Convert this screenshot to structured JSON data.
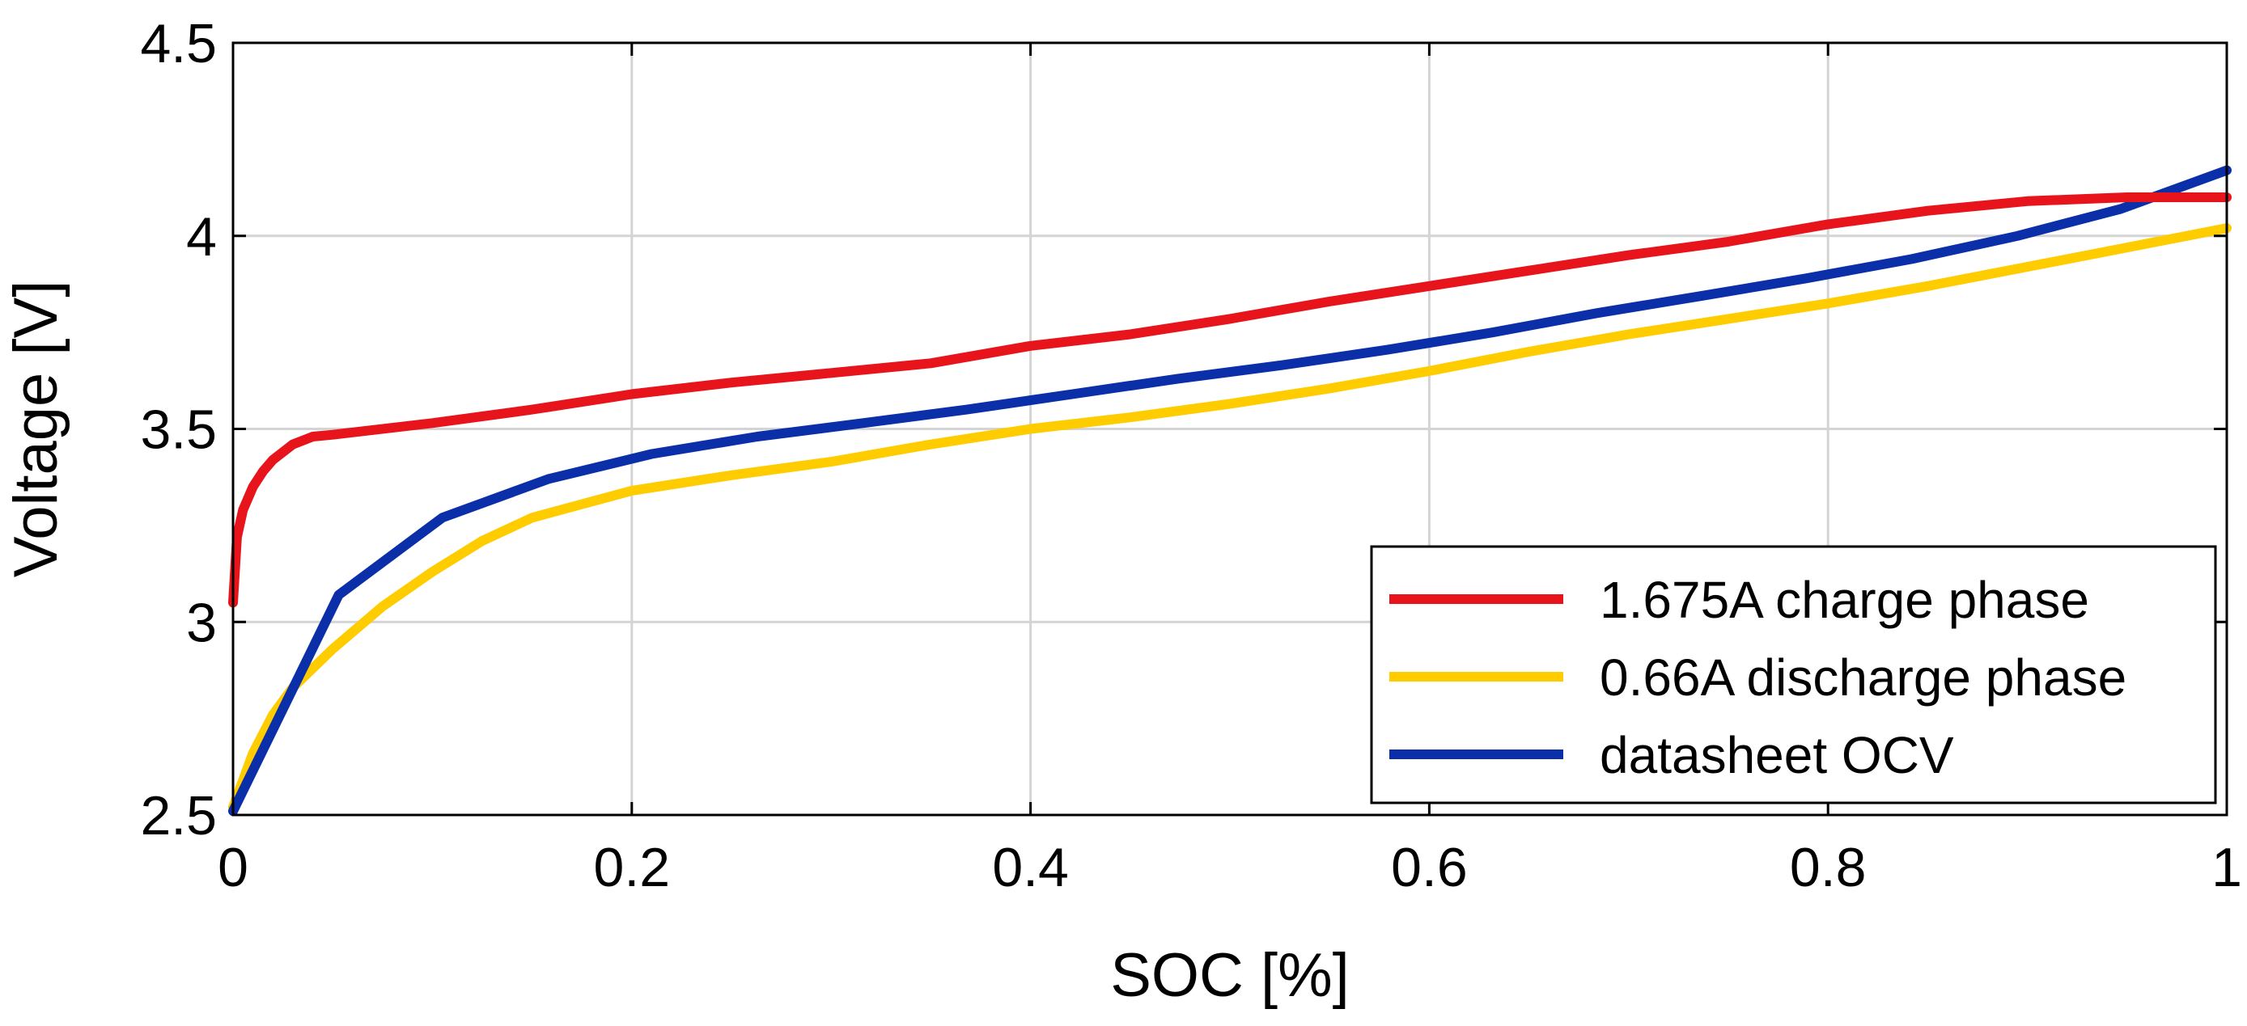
{
  "chart_data": {
    "type": "line",
    "title": "",
    "xlabel": "SOC [%]",
    "ylabel": "Voltage [V]",
    "xlim": [
      0,
      1
    ],
    "ylim": [
      2.5,
      4.5
    ],
    "grid": true,
    "legend_position": "bottom-right",
    "xticks": [
      {
        "value": 0,
        "label": "0"
      },
      {
        "value": 0.2,
        "label": "0.2"
      },
      {
        "value": 0.4,
        "label": "0.4"
      },
      {
        "value": 0.6,
        "label": "0.6"
      },
      {
        "value": 0.8,
        "label": "0.8"
      },
      {
        "value": 1,
        "label": "1"
      }
    ],
    "yticks": [
      {
        "value": 2.5,
        "label": "2.5"
      },
      {
        "value": 3,
        "label": "3"
      },
      {
        "value": 3.5,
        "label": "3.5"
      },
      {
        "value": 4,
        "label": "4"
      },
      {
        "value": 4.5,
        "label": "4.5"
      }
    ],
    "series": [
      {
        "name": "1.675A charge phase",
        "color": "#e8141c",
        "x": [
          0,
          0.002,
          0.005,
          0.01,
          0.015,
          0.02,
          0.03,
          0.04,
          0.05,
          0.1,
          0.15,
          0.2,
          0.25,
          0.3,
          0.35,
          0.4,
          0.45,
          0.5,
          0.55,
          0.6,
          0.65,
          0.7,
          0.75,
          0.8,
          0.85,
          0.9,
          0.95,
          1.0
        ],
        "y": [
          3.05,
          3.22,
          3.29,
          3.35,
          3.39,
          3.42,
          3.46,
          3.48,
          3.485,
          3.515,
          3.55,
          3.59,
          3.62,
          3.645,
          3.67,
          3.715,
          3.745,
          3.785,
          3.83,
          3.87,
          3.91,
          3.95,
          3.985,
          4.03,
          4.065,
          4.09,
          4.1,
          4.1
        ]
      },
      {
        "name": "0.66A discharge phase",
        "color": "#ffcc00",
        "x": [
          0,
          0.01,
          0.02,
          0.03,
          0.05,
          0.075,
          0.1,
          0.125,
          0.15,
          0.2,
          0.25,
          0.3,
          0.35,
          0.4,
          0.45,
          0.5,
          0.55,
          0.6,
          0.65,
          0.7,
          0.75,
          0.8,
          0.85,
          0.9,
          0.95,
          1.0
        ],
        "y": [
          2.52,
          2.66,
          2.76,
          2.83,
          2.93,
          3.04,
          3.13,
          3.21,
          3.27,
          3.34,
          3.38,
          3.415,
          3.46,
          3.5,
          3.53,
          3.565,
          3.605,
          3.65,
          3.7,
          3.745,
          3.785,
          3.825,
          3.87,
          3.92,
          3.97,
          4.02
        ]
      },
      {
        "name": "datasheet OCV",
        "color": "#0a2fa8",
        "x": [
          0,
          0.053,
          0.105,
          0.158,
          0.21,
          0.263,
          0.316,
          0.368,
          0.421,
          0.474,
          0.526,
          0.579,
          0.632,
          0.684,
          0.737,
          0.789,
          0.842,
          0.895,
          0.947,
          1.0
        ],
        "y": [
          2.51,
          3.07,
          3.27,
          3.37,
          3.435,
          3.48,
          3.515,
          3.55,
          3.59,
          3.63,
          3.665,
          3.705,
          3.75,
          3.8,
          3.845,
          3.89,
          3.94,
          4.0,
          4.07,
          4.17
        ]
      }
    ]
  }
}
